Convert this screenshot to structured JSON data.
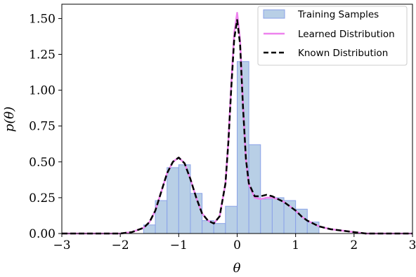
{
  "chart_data": {
    "type": "bar+line",
    "xlabel": "θ",
    "ylabel": "p(θ)",
    "xlim": [
      -3,
      3
    ],
    "ylim": [
      0,
      1.6
    ],
    "x_ticks": [
      "−3",
      "−2",
      "−1",
      "0",
      "1",
      "2",
      "3"
    ],
    "x_tick_values": [
      -3,
      -2,
      -1,
      0,
      1,
      2,
      3
    ],
    "y_ticks": [
      "0.00",
      "0.25",
      "0.50",
      "0.75",
      "1.00",
      "1.25",
      "1.50"
    ],
    "y_tick_values": [
      0,
      0.25,
      0.5,
      0.75,
      1.0,
      1.25,
      1.5
    ],
    "legend_position": "top-right",
    "legend": {
      "training": "Training Samples",
      "learned": "Learned Distribution",
      "known": "Known Distribution"
    },
    "histogram": {
      "name": "Training Samples",
      "color": "#b8cfe6",
      "edge_color": "#8aa2e8",
      "bin_width": 0.2,
      "bin_starts": [
        -1.6,
        -1.4,
        -1.2,
        -1.0,
        -0.8,
        -0.6,
        -0.4,
        -0.2,
        0.0,
        0.2,
        0.4,
        0.6,
        0.8,
        1.0,
        1.2
      ],
      "values": [
        0.06,
        0.23,
        0.46,
        0.48,
        0.28,
        0.09,
        0.07,
        0.19,
        1.2,
        0.62,
        0.24,
        0.25,
        0.23,
        0.17,
        0.08
      ]
    },
    "learned_curve": {
      "name": "Learned Distribution",
      "color": "#ee82ee",
      "x": [
        -3.0,
        -2.0,
        -1.8,
        -1.6,
        -1.5,
        -1.4,
        -1.3,
        -1.2,
        -1.1,
        -1.0,
        -0.9,
        -0.8,
        -0.7,
        -0.6,
        -0.5,
        -0.4,
        -0.3,
        -0.2,
        -0.15,
        -0.1,
        -0.05,
        0.0,
        0.05,
        0.1,
        0.15,
        0.2,
        0.3,
        0.4,
        0.5,
        0.6,
        0.7,
        0.8,
        0.9,
        1.0,
        1.1,
        1.2,
        1.3,
        1.4,
        1.6,
        1.8,
        2.0,
        2.2,
        2.5,
        3.0
      ],
      "y": [
        0.0,
        0.0,
        0.01,
        0.04,
        0.08,
        0.16,
        0.29,
        0.42,
        0.5,
        0.53,
        0.49,
        0.38,
        0.25,
        0.14,
        0.09,
        0.07,
        0.12,
        0.35,
        0.65,
        1.05,
        1.4,
        1.54,
        1.35,
        0.9,
        0.52,
        0.34,
        0.25,
        0.24,
        0.25,
        0.25,
        0.24,
        0.22,
        0.19,
        0.16,
        0.12,
        0.09,
        0.07,
        0.05,
        0.03,
        0.02,
        0.01,
        0.0,
        0.0,
        0.0
      ]
    },
    "known_curve": {
      "name": "Known Distribution",
      "color": "#000000",
      "x": [
        -3.0,
        -2.0,
        -1.8,
        -1.6,
        -1.5,
        -1.4,
        -1.3,
        -1.2,
        -1.1,
        -1.0,
        -0.9,
        -0.8,
        -0.7,
        -0.6,
        -0.5,
        -0.4,
        -0.3,
        -0.2,
        -0.15,
        -0.1,
        -0.05,
        0.0,
        0.05,
        0.1,
        0.15,
        0.2,
        0.3,
        0.4,
        0.5,
        0.6,
        0.7,
        0.8,
        0.9,
        1.0,
        1.1,
        1.2,
        1.3,
        1.4,
        1.6,
        1.8,
        2.0,
        2.2,
        2.5,
        3.0
      ],
      "y": [
        0.0,
        0.0,
        0.01,
        0.04,
        0.08,
        0.16,
        0.29,
        0.42,
        0.5,
        0.53,
        0.49,
        0.38,
        0.25,
        0.14,
        0.09,
        0.07,
        0.12,
        0.35,
        0.64,
        1.02,
        1.36,
        1.49,
        1.32,
        0.88,
        0.52,
        0.35,
        0.26,
        0.26,
        0.27,
        0.26,
        0.24,
        0.22,
        0.19,
        0.16,
        0.12,
        0.09,
        0.07,
        0.05,
        0.03,
        0.02,
        0.01,
        0.0,
        0.0,
        0.0
      ]
    }
  }
}
